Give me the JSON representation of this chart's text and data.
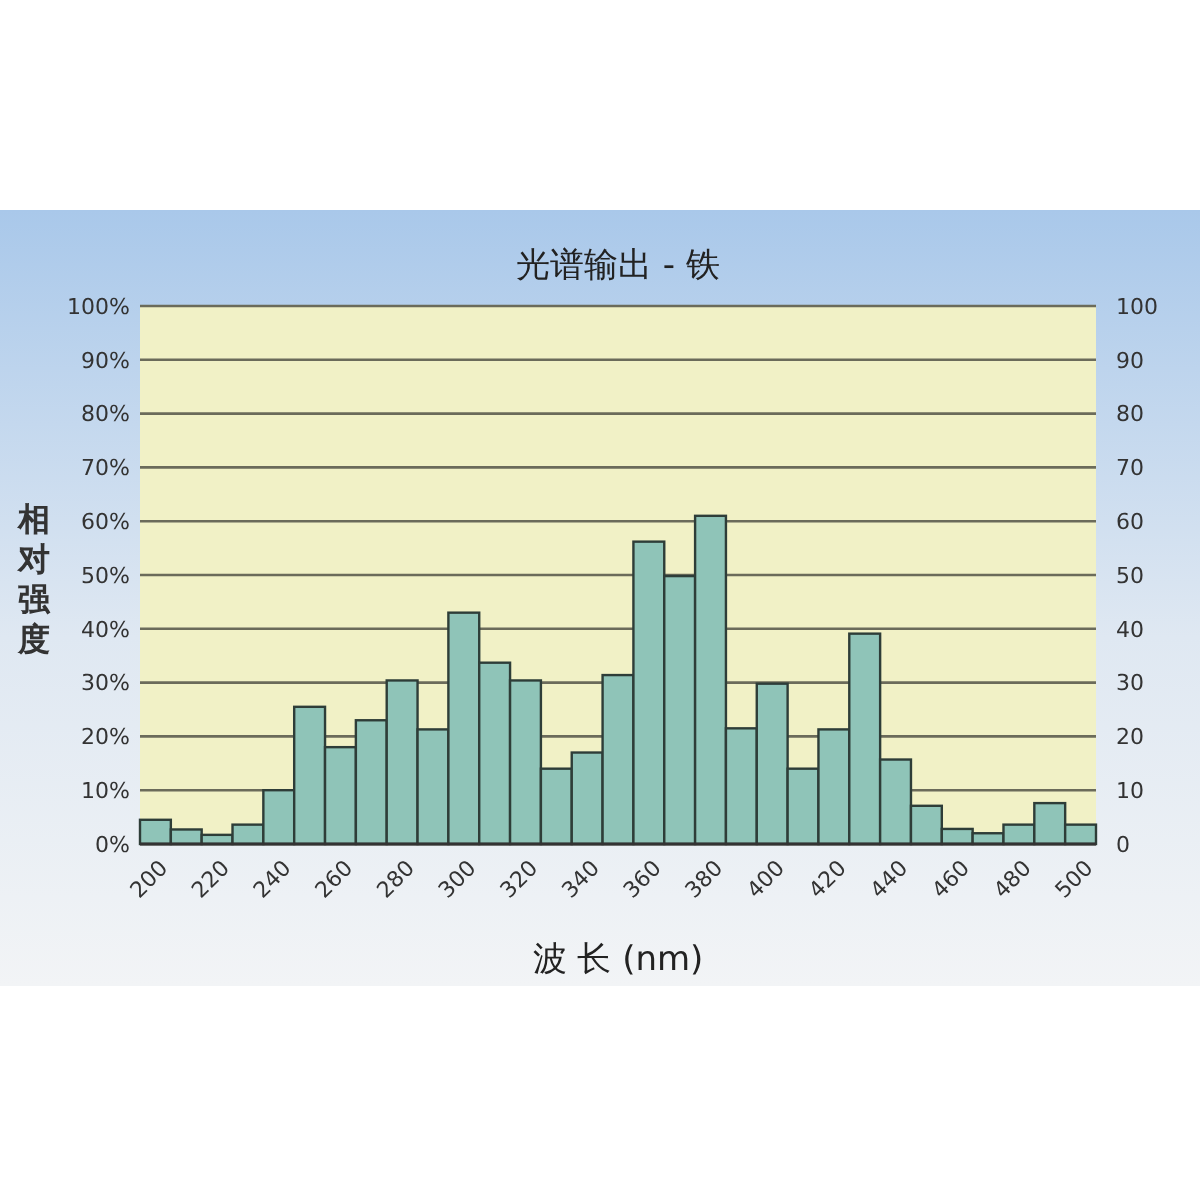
{
  "chart_data": {
    "type": "histogram",
    "title": "光谱输出 - 铁",
    "xlabel": "波 长 (nm)",
    "ylabel": "相对强度",
    "bins": [
      195,
      205,
      215,
      225,
      235,
      245,
      255,
      265,
      275,
      285,
      295,
      305,
      315,
      325,
      335,
      345,
      355,
      365,
      375,
      385,
      395,
      405,
      415,
      425,
      435,
      445,
      455,
      465,
      475,
      485,
      495,
      505
    ],
    "values": [
      4.5,
      2.7,
      1.7,
      3.6,
      10,
      25.5,
      18,
      23,
      30.4,
      21.3,
      43,
      33.7,
      30.4,
      14,
      17,
      31.4,
      56.2,
      49.8,
      61,
      21.5,
      29.8,
      14,
      21.3,
      39.1,
      15.7,
      7.1,
      2.8,
      2,
      3.6,
      7.6,
      3.6
    ],
    "color": "#8fc4b8",
    "xlim": [
      195,
      505
    ],
    "xticks": [
      200,
      220,
      240,
      260,
      280,
      300,
      320,
      340,
      360,
      380,
      400,
      420,
      440,
      460,
      480,
      500
    ],
    "ylim": [
      0,
      100
    ],
    "yticks": [
      {
        "value": 0,
        "label": "0%"
      },
      {
        "value": 10,
        "label": "10%"
      },
      {
        "value": 20,
        "label": "20%"
      },
      {
        "value": 30,
        "label": "30%"
      },
      {
        "value": 40,
        "label": "40%"
      },
      {
        "value": 50,
        "label": "50%"
      },
      {
        "value": 60,
        "label": "60%"
      },
      {
        "value": 70,
        "label": "70%"
      },
      {
        "value": 80,
        "label": "80%"
      },
      {
        "value": 90,
        "label": "90%"
      },
      {
        "value": 100,
        "label": "100%"
      }
    ],
    "y2lim": [
      0,
      100
    ],
    "y2ticks": [
      0,
      10,
      20,
      30,
      40,
      50,
      60,
      70,
      80,
      90,
      100
    ],
    "grid": "y"
  }
}
